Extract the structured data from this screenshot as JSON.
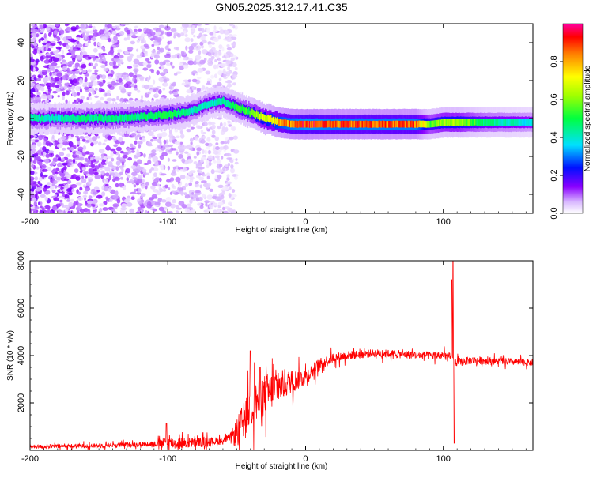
{
  "page_title": "GN05.2025.312.17.41.C35",
  "chart_data": [
    {
      "type": "heatmap",
      "xlabel": "Height of straight line (km)",
      "ylabel": "Frequency (Hz)",
      "xlim": [
        -200,
        165
      ],
      "ylim": [
        -50,
        50
      ],
      "xticks": [
        "-200",
        "-100",
        "0",
        "100"
      ],
      "xtick_values": [
        -200,
        -100,
        0,
        100
      ],
      "yticks": [
        "-40",
        "-20",
        "0",
        "20",
        "40"
      ],
      "ytick_values": [
        -40,
        -20,
        0,
        20,
        40
      ],
      "colorbar": {
        "label": "Normalized spectral amplitude",
        "range": [
          0,
          1
        ],
        "ticks": [
          "0.0",
          "0.2",
          "0.4",
          "0.6",
          "0.8"
        ],
        "tick_values": [
          0.0,
          0.2,
          0.4,
          0.6,
          0.8
        ]
      },
      "ridge": {
        "x": [
          -200,
          -180,
          -160,
          -140,
          -120,
          -100,
          -90,
          -80,
          -70,
          -60,
          -50,
          -40,
          -30,
          -20,
          -10,
          0,
          20,
          40,
          60,
          80,
          90,
          100,
          110,
          130,
          150,
          165
        ],
        "frequency": [
          0,
          0,
          0,
          0,
          1,
          2,
          3,
          5,
          8,
          9,
          6,
          3,
          0,
          -2,
          -3,
          -3,
          -3,
          -3,
          -3,
          -3,
          -3,
          -2,
          -2,
          -2,
          -2,
          -2
        ],
        "amplitude": [
          0.45,
          0.45,
          0.5,
          0.5,
          0.5,
          0.55,
          0.5,
          0.45,
          0.45,
          0.45,
          0.55,
          0.6,
          0.75,
          0.85,
          0.95,
          1.0,
          0.95,
          0.95,
          0.95,
          0.95,
          0.6,
          0.7,
          0.7,
          0.5,
          0.45,
          0.4
        ]
      },
      "noise_region": [
        -200,
        -55
      ]
    },
    {
      "type": "line",
      "xlabel": "Height of straight line (km)",
      "ylabel": "SNR (10 * v/v)",
      "xlim": [
        -200,
        165
      ],
      "ylim": [
        0,
        8000
      ],
      "xticks": [
        "-200",
        "-100",
        "0",
        "100"
      ],
      "xtick_values": [
        -200,
        -100,
        0,
        100
      ],
      "yticks": [
        "2000",
        "4000",
        "6000",
        "8000"
      ],
      "ytick_values": [
        2000,
        4000,
        6000,
        8000
      ],
      "color": "#ff0000",
      "baseline": {
        "x": [
          -200,
          -150,
          -120,
          -100,
          -90,
          -60,
          -50,
          -45,
          -40,
          -35,
          -30,
          -25,
          -20,
          -10,
          0,
          10,
          20,
          30,
          50,
          70,
          90,
          100,
          105,
          110,
          120,
          140,
          165
        ],
        "y": [
          150,
          200,
          250,
          300,
          300,
          400,
          700,
          1300,
          1800,
          2100,
          2300,
          2500,
          2700,
          2900,
          3100,
          3600,
          3900,
          4000,
          4100,
          4050,
          4000,
          4000,
          3900,
          3700,
          3800,
          3750,
          3700
        ]
      },
      "noise": {
        "x": [
          -200,
          -110,
          -100,
          -55,
          -50,
          -40,
          -30,
          -20,
          -10,
          0,
          20,
          40,
          100,
          105,
          110,
          165
        ],
        "amplitude": [
          120,
          150,
          400,
          200,
          900,
          1200,
          1300,
          1000,
          700,
          500,
          300,
          250,
          250,
          300,
          250,
          200
        ]
      },
      "spikes": [
        {
          "x": -101,
          "y": 1150
        },
        {
          "x": -40,
          "y": 4200
        },
        {
          "x": -37,
          "y": 3700
        },
        {
          "x": -33,
          "y": 3500
        },
        {
          "x": 106,
          "y": 7200
        },
        {
          "x": 107,
          "y": 8000
        },
        {
          "x": 108,
          "y": 300
        }
      ]
    }
  ]
}
